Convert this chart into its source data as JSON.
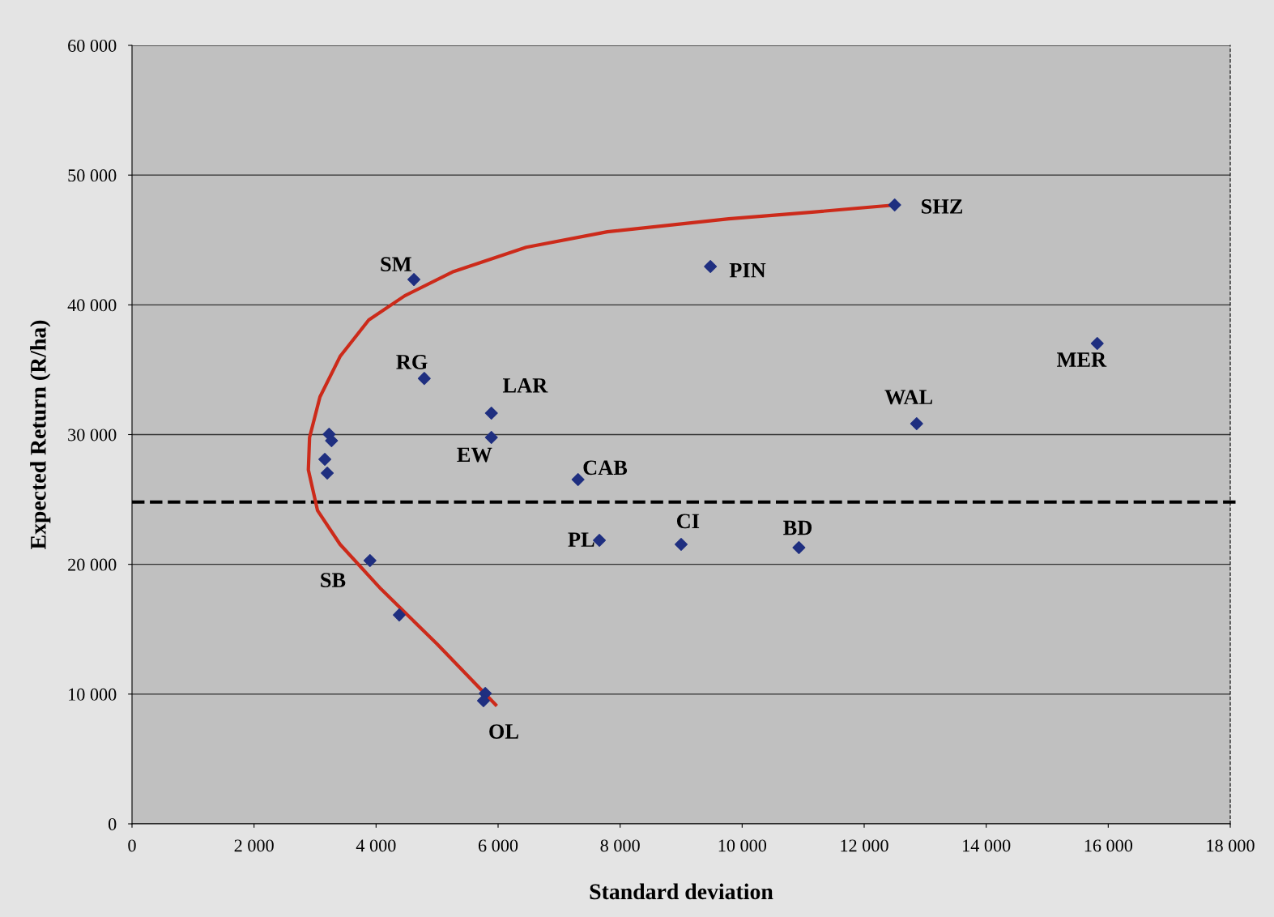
{
  "chart_data": {
    "type": "scatter",
    "xlabel": "Standard deviation",
    "ylabel": "Expected Return (R/ha)",
    "series": [
      {
        "color": "#1f2f80",
        "marker": "diamond",
        "x": [
          12500,
          9480,
          4620,
          15820,
          4790,
          5890,
          5890,
          12860,
          3230,
          3270,
          3160,
          3200,
          7310,
          7660,
          9000,
          10930,
          3900,
          4380,
          5790,
          5760
        ],
        "values": [
          47700,
          42950,
          41950,
          37020,
          34330,
          31650,
          29780,
          30840,
          30030,
          29530,
          28090,
          27030,
          26530,
          21850,
          21540,
          21290,
          20290,
          16100,
          10050,
          9490
        ]
      },
      {
        "type": "line",
        "color": "#cc2a1a",
        "marker": "none",
        "line_style": "solid",
        "x": [
          5960,
          5000,
          4080,
          3410,
          3040,
          2890,
          2910,
          3080,
          3410,
          3880,
          4470,
          5270,
          6460,
          7790,
          9780,
          11110,
          12490
        ],
        "values": [
          9180,
          13860,
          18100,
          21540,
          24160,
          27280,
          29780,
          32900,
          36020,
          38830,
          40700,
          42570,
          44440,
          45630,
          46630,
          47130,
          47690
        ]
      }
    ],
    "ref_lines": [
      {
        "axis": "y",
        "value": 24800,
        "color": "#000000",
        "line_style": "dashed"
      }
    ],
    "annotations": [
      {
        "text": "SHZ",
        "x": 12500,
        "y": 47700
      },
      {
        "text": "PIN",
        "x": 9480,
        "y": 42950
      },
      {
        "text": "SM",
        "x": 4620,
        "y": 41950
      },
      {
        "text": "MER",
        "x": 15820,
        "y": 37020
      },
      {
        "text": "RG",
        "x": 4790,
        "y": 34330
      },
      {
        "text": "LAR",
        "x": 5890,
        "y": 31650
      },
      {
        "text": "EW",
        "x": 5890,
        "y": 29780
      },
      {
        "text": "WAL",
        "x": 12860,
        "y": 30840
      },
      {
        "text": "CAB",
        "x": 7310,
        "y": 26530
      },
      {
        "text": "PL",
        "x": 7660,
        "y": 21850
      },
      {
        "text": "CI",
        "x": 9000,
        "y": 21540
      },
      {
        "text": "BD",
        "x": 10930,
        "y": 21290
      },
      {
        "text": "SB",
        "x": 3900,
        "y": 20290
      },
      {
        "text": "OL",
        "x": 5760,
        "y": 9490
      }
    ],
    "xlim": [
      0,
      18000
    ],
    "ylim": [
      0,
      60000
    ],
    "xticks": [
      0,
      {
        "value": 2000,
        "label": "2 000"
      },
      {
        "value": 4000,
        "label": "4 000"
      },
      {
        "value": 6000,
        "label": "6 000"
      },
      {
        "value": 8000,
        "label": "8 000"
      },
      {
        "value": 10000,
        "label": "10 000"
      },
      {
        "value": 12000,
        "label": "12 000"
      },
      {
        "value": 14000,
        "label": "14 000"
      },
      {
        "value": 16000,
        "label": "16 000"
      },
      {
        "value": 18000,
        "label": "18 000"
      }
    ],
    "yticks": [
      0,
      {
        "value": 10000,
        "label": "10 000"
      },
      {
        "value": 20000,
        "label": "20 000"
      },
      {
        "value": 30000,
        "label": "30 000"
      },
      {
        "value": 40000,
        "label": "40 000"
      },
      {
        "value": 50000,
        "label": "50 000"
      },
      {
        "value": 60000,
        "label": "60 000"
      }
    ],
    "grid": "y",
    "legend": false
  }
}
